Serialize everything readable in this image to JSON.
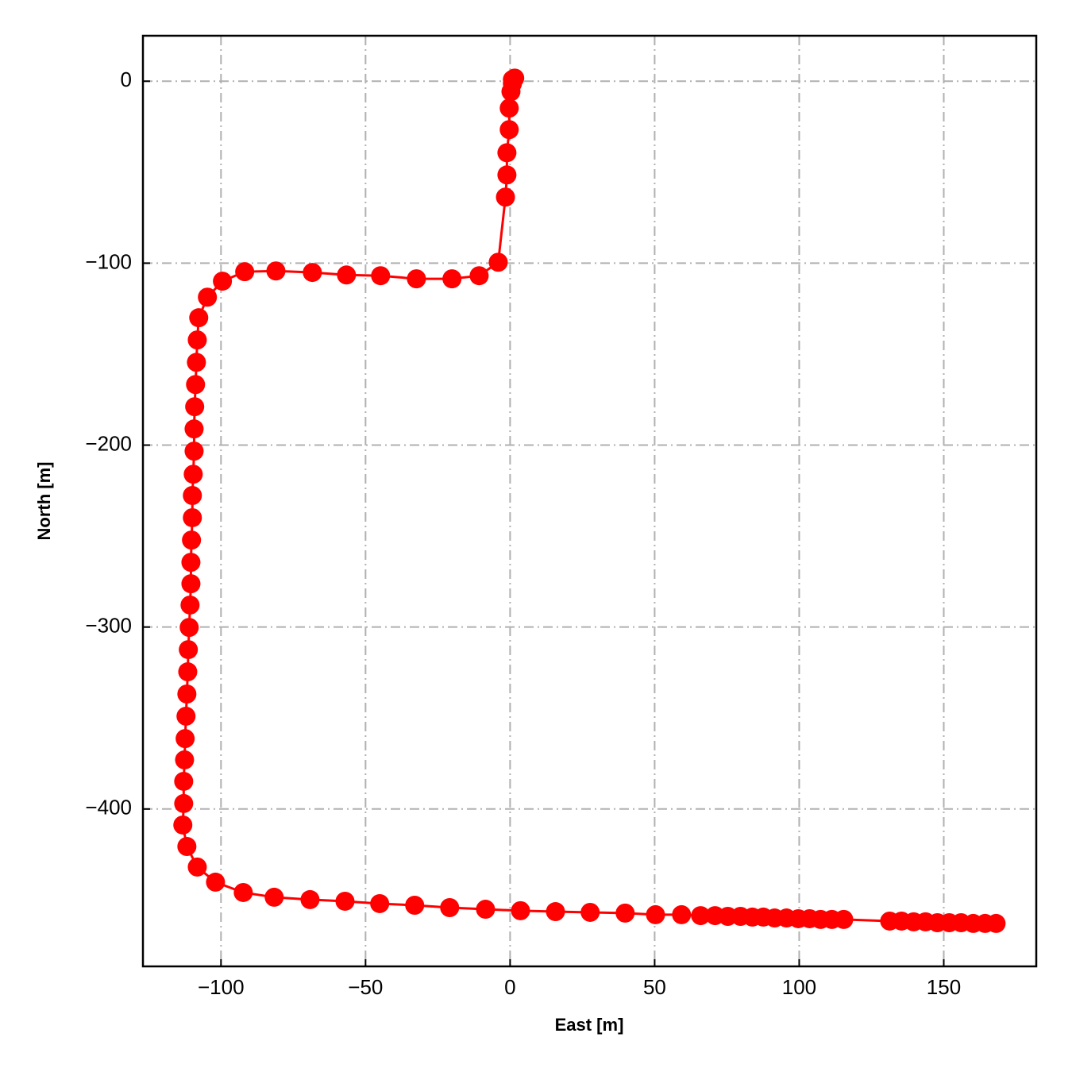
{
  "chart_data": {
    "type": "line",
    "xlabel": "East [m]",
    "ylabel": "North [m]",
    "color": "#ff0000",
    "grid": true,
    "markers": true,
    "xlim": [
      -127,
      182
    ],
    "ylim": [
      -486.5,
      25
    ],
    "xticks": [
      {
        "value": -100,
        "label": "−100"
      },
      {
        "value": -50,
        "label": "−50"
      },
      0,
      50,
      100,
      150
    ],
    "yticks": [
      0,
      {
        "value": -100,
        "label": "−100"
      },
      {
        "value": -200,
        "label": "−200"
      },
      {
        "value": -300,
        "label": "−300"
      },
      {
        "value": -400,
        "label": "−400"
      }
    ],
    "x": [
      0.8,
      1.6,
      0.8,
      0.3,
      -0.3,
      -0.3,
      -1.1,
      -1.1,
      -1.6,
      -4.1,
      -10.7,
      -20.1,
      -32.4,
      -44.8,
      -56.6,
      -68.4,
      -81.0,
      -91.8,
      -99.5,
      -104.7,
      -107.7,
      -108.2,
      -108.5,
      -108.8,
      -109.1,
      -109.3,
      -109.3,
      -109.6,
      -109.9,
      -109.9,
      -110.2,
      -110.4,
      -110.4,
      -110.7,
      -111.0,
      -111.3,
      -111.5,
      -111.8,
      -112.1,
      -112.4,
      -112.6,
      -112.9,
      -112.9,
      -113.2,
      -111.8,
      -108.2,
      -101.9,
      -92.3,
      -81.6,
      -69.2,
      -57.1,
      -45.1,
      -33.0,
      -20.9,
      -8.5,
      3.6,
      15.7,
      27.7,
      39.8,
      50.3,
      59.3,
      65.9,
      70.9,
      75.3,
      79.7,
      83.8,
      87.6,
      91.5,
      95.6,
      99.7,
      103.6,
      107.4,
      111.3,
      115.4,
      131.3,
      135.4,
      139.6,
      143.7,
      147.8,
      151.9,
      156.0,
      160.2,
      164.3,
      168.1
    ],
    "values": [
      0.9,
      1.7,
      -1.3,
      -5.7,
      -14.8,
      -26.6,
      -39.3,
      -51.5,
      -63.7,
      -99.5,
      -106.9,
      -108.6,
      -108.6,
      -106.9,
      -106.5,
      -105.1,
      -104.3,
      -104.7,
      -109.9,
      -118.7,
      -130.0,
      -142.2,
      -154.5,
      -166.7,
      -178.9,
      -191.1,
      -203.3,
      -216.0,
      -227.7,
      -239.9,
      -252.2,
      -264.4,
      -276.2,
      -287.9,
      -300.2,
      -312.4,
      -324.6,
      -336.8,
      -349.0,
      -361.3,
      -373.0,
      -384.8,
      -397.0,
      -408.8,
      -420.6,
      -431.9,
      -440.2,
      -445.9,
      -448.5,
      -449.8,
      -450.7,
      -452.0,
      -452.9,
      -454.2,
      -455.1,
      -455.9,
      -456.4,
      -456.8,
      -457.2,
      -458.1,
      -458.1,
      -458.6,
      -458.6,
      -459.0,
      -459.0,
      -459.4,
      -459.4,
      -459.9,
      -459.9,
      -460.3,
      -460.3,
      -460.7,
      -460.7,
      -460.7,
      -461.6,
      -461.6,
      -462.0,
      -462.0,
      -462.5,
      -462.5,
      -462.5,
      -462.9,
      -462.9,
      -462.9
    ]
  }
}
